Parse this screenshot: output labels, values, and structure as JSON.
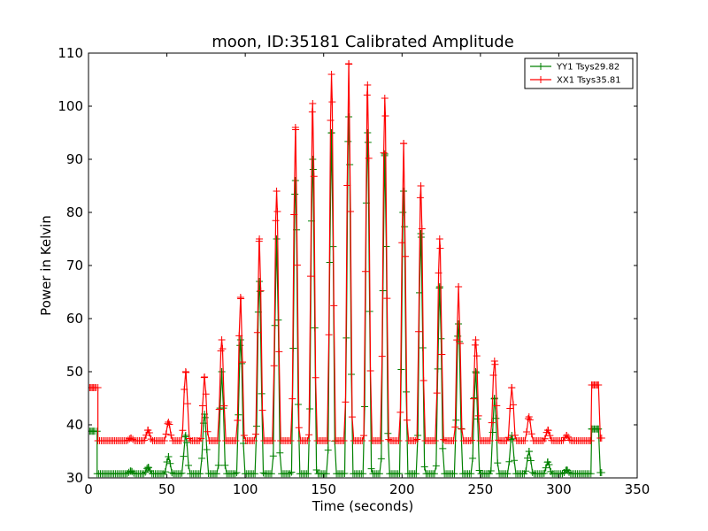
{
  "chart_data": {
    "type": "line",
    "title": "moon, ID:35181 Calibrated Amplitude",
    "xlabel": "Time (seconds)",
    "ylabel": "Power in Kelvin",
    "xlim": [
      0,
      350
    ],
    "ylim": [
      30,
      110
    ],
    "xticks": [
      "0",
      "50",
      "100",
      "150",
      "200",
      "250",
      "300",
      "350"
    ],
    "yticks": [
      "30",
      "40",
      "50",
      "60",
      "70",
      "80",
      "90",
      "100",
      "110"
    ],
    "grid": false,
    "legend_position": "top-right",
    "marker": "+",
    "series": [
      {
        "name": "YY1 Tsys29.82",
        "color": "#008000",
        "baseline": 30.8,
        "step_start": {
          "x": [
            0,
            4
          ],
          "y": 38.8,
          "drop_at": 5.5
        },
        "step_end": {
          "x": [
            321,
            325
          ],
          "y": 39.2,
          "after_x": 327,
          "after_y": 31.0
        },
        "x_end": 328,
        "peaks": [
          {
            "x": 27,
            "y": 31.3
          },
          {
            "x": 38,
            "y": 32.0
          },
          {
            "x": 51,
            "y": 34.0
          },
          {
            "x": 62,
            "y": 38.0
          },
          {
            "x": 74,
            "y": 42.0
          },
          {
            "x": 85,
            "y": 50.0
          },
          {
            "x": 97,
            "y": 56.0
          },
          {
            "x": 109,
            "y": 67.0
          },
          {
            "x": 120,
            "y": 75.0
          },
          {
            "x": 132,
            "y": 86.0
          },
          {
            "x": 143,
            "y": 90.0
          },
          {
            "x": 155,
            "y": 95.0
          },
          {
            "x": 166,
            "y": 98.0
          },
          {
            "x": 178,
            "y": 95.0
          },
          {
            "x": 189,
            "y": 91.0
          },
          {
            "x": 201,
            "y": 84.0
          },
          {
            "x": 212,
            "y": 76.0
          },
          {
            "x": 224,
            "y": 66.0
          },
          {
            "x": 236,
            "y": 59.0
          },
          {
            "x": 247,
            "y": 50.0
          },
          {
            "x": 259,
            "y": 45.0
          },
          {
            "x": 270,
            "y": 38.0
          },
          {
            "x": 281,
            "y": 35.0
          },
          {
            "x": 293,
            "y": 33.0
          },
          {
            "x": 305,
            "y": 31.5
          }
        ]
      },
      {
        "name": "XX1 Tsys35.81",
        "color": "#ff0000",
        "baseline": 37.0,
        "step_start": {
          "x": [
            0,
            5
          ],
          "y": 47.0,
          "drop_at": 6
        },
        "step_end": {
          "x": [
            321,
            325
          ],
          "y": 47.5,
          "after_x": 327,
          "after_y": 37.5
        },
        "x_end": 328,
        "peaks": [
          {
            "x": 27,
            "y": 37.5
          },
          {
            "x": 38,
            "y": 39.0
          },
          {
            "x": 51,
            "y": 40.5
          },
          {
            "x": 62,
            "y": 50.0
          },
          {
            "x": 74,
            "y": 49.0
          },
          {
            "x": 85,
            "y": 56.0
          },
          {
            "x": 97,
            "y": 64.0
          },
          {
            "x": 109,
            "y": 75.0
          },
          {
            "x": 120,
            "y": 84.0
          },
          {
            "x": 132,
            "y": 96.0
          },
          {
            "x": 143,
            "y": 100.5
          },
          {
            "x": 155,
            "y": 106.0
          },
          {
            "x": 166,
            "y": 108.0
          },
          {
            "x": 178,
            "y": 104.0
          },
          {
            "x": 189,
            "y": 101.5
          },
          {
            "x": 201,
            "y": 93.0
          },
          {
            "x": 212,
            "y": 85.0
          },
          {
            "x": 224,
            "y": 75.0
          },
          {
            "x": 236,
            "y": 66.0
          },
          {
            "x": 247,
            "y": 56.0
          },
          {
            "x": 259,
            "y": 52.0
          },
          {
            "x": 270,
            "y": 47.0
          },
          {
            "x": 281,
            "y": 41.5
          },
          {
            "x": 293,
            "y": 39.0
          },
          {
            "x": 305,
            "y": 38.0
          }
        ]
      }
    ]
  }
}
